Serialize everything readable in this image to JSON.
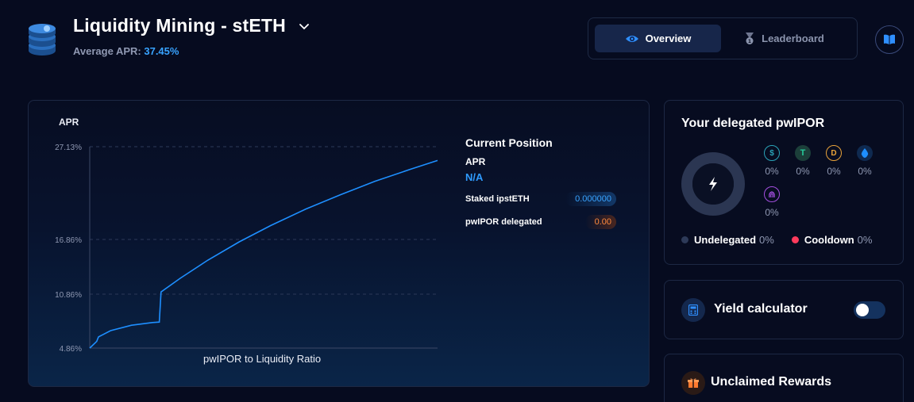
{
  "header": {
    "title": "Liquidity Mining - stETH",
    "apr_label": "Average APR:",
    "apr_value": "37.45%",
    "tabs": [
      {
        "label": "Overview",
        "icon": "eye-icon",
        "active": true
      },
      {
        "label": "Leaderboard",
        "icon": "medal-icon",
        "active": false
      }
    ],
    "docs_icon": "book-icon"
  },
  "chart_data": {
    "type": "line",
    "title": "",
    "ylabel": "APR",
    "xlabel": "pwIPOR to Liquidity Ratio",
    "yticks": [
      "27.13%",
      "16.86%",
      "10.86%",
      "4.86%"
    ],
    "ylim": [
      4.86,
      27.13
    ],
    "grid": "horizontal-dashed",
    "series": [
      {
        "color": "#1e8fff",
        "x": [
          0,
          0.02,
          0.025,
          0.06,
          0.12,
          0.18,
          0.2,
          0.205,
          0.26,
          0.34,
          0.43,
          0.52,
          0.62,
          0.72,
          0.82,
          0.92,
          1.0
        ],
        "y": [
          4.86,
          5.6,
          6.1,
          6.8,
          7.4,
          7.7,
          7.75,
          11.1,
          12.6,
          14.6,
          16.6,
          18.4,
          20.2,
          21.8,
          23.3,
          24.6,
          25.6
        ]
      }
    ]
  },
  "position": {
    "title": "Current Position",
    "apr_label": "APR",
    "apr_value": "N/A",
    "staked_label": "Staked ipstETH",
    "staked_value": "0.000000",
    "delegated_label": "pwIPOR delegated",
    "delegated_value": "0.00"
  },
  "delegated": {
    "title": "Your delegated pwIPOR",
    "center_icon": "lightning-icon",
    "tokens": [
      {
        "icon": "usdc-icon",
        "color": "#2aa3b8",
        "pct": "0%"
      },
      {
        "icon": "usdt-icon",
        "color": "#26a17b",
        "pct": "0%"
      },
      {
        "icon": "dai-icon",
        "color": "#e8a23a",
        "pct": "0%"
      },
      {
        "icon": "eth-drop-icon",
        "color": "#1e8fff",
        "pct": "0%"
      },
      {
        "icon": "fingerprint-icon",
        "color": "#a44fe0",
        "pct": "0%"
      }
    ],
    "legend": [
      {
        "name": "Undelegated",
        "value": "0%",
        "color": "#2d3a58"
      },
      {
        "name": "Cooldown",
        "value": "0%",
        "color": "#ff3b5c"
      }
    ]
  },
  "yield_calc": {
    "label": "Yield calculator",
    "icon": "calculator-icon",
    "enabled": false
  },
  "rewards": {
    "label": "Unclaimed Rewards",
    "icon": "gift-icon"
  }
}
